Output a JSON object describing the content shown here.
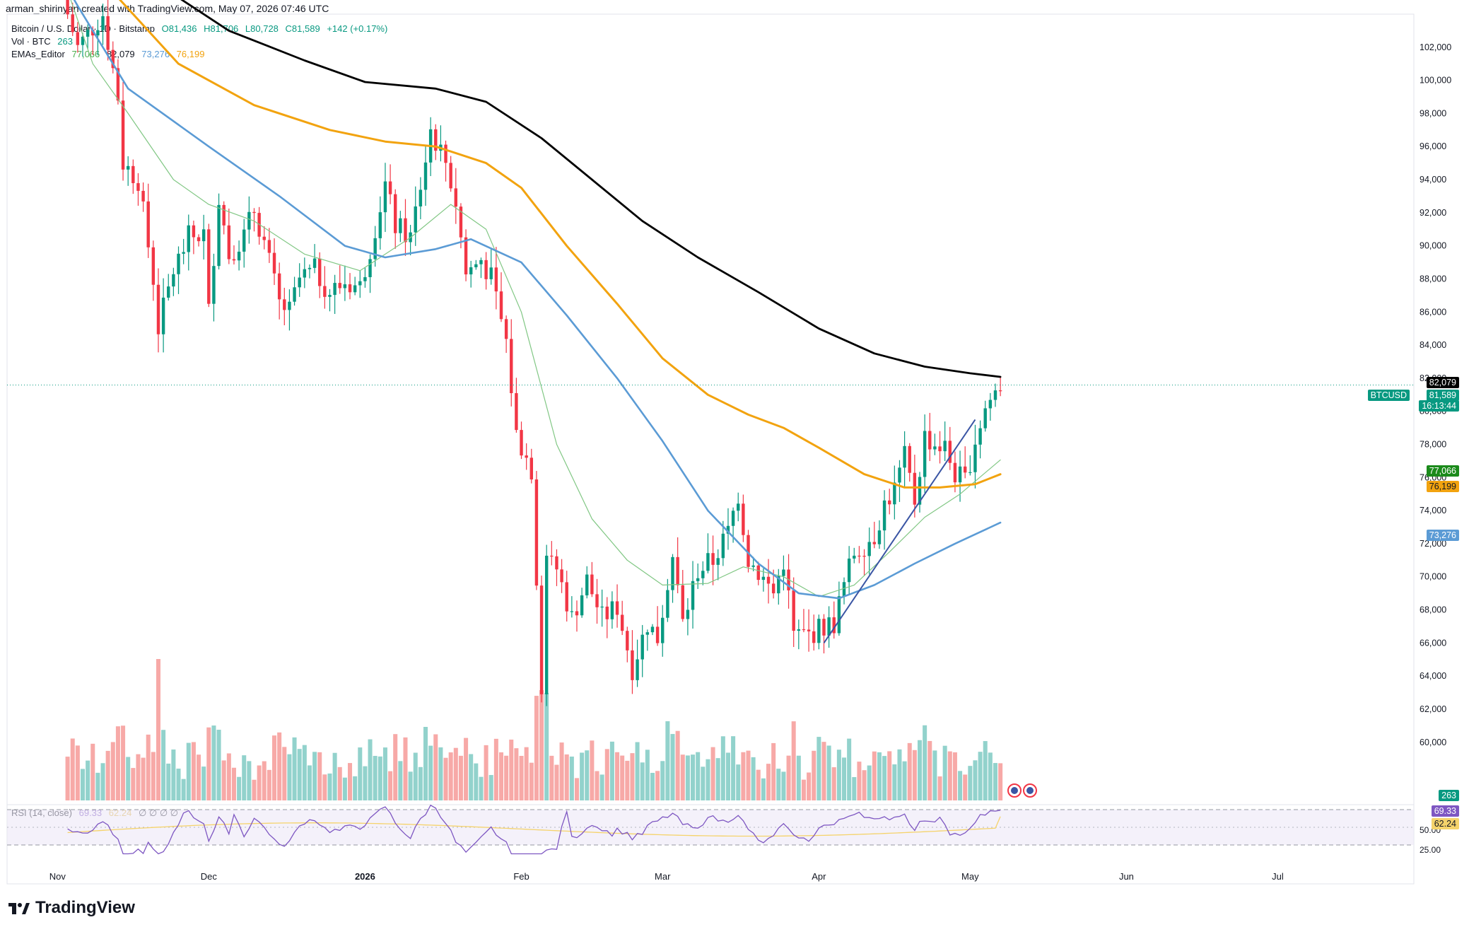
{
  "header": {
    "created_by": "arman_shirinyan created with TradingView.com, May 07, 2026 07:46 UTC"
  },
  "legend": {
    "symbol": "Bitcoin / U.S. Dollar · 1D · Bitstamp",
    "open": "O81,436",
    "high": "H81,706",
    "low": "L80,728",
    "close": "C81,589",
    "change": "+142 (+0.17%)",
    "vol_label": "Vol · BTC",
    "vol_value": "263",
    "ema_label": "EMAs_Editor",
    "ema_values": [
      "77,066",
      "82,079",
      "73,276",
      "76,199"
    ],
    "rsi_label": "RSI (14, close)",
    "rsi_value": "69.33",
    "rsi_ma": "62.24",
    "rsi_extra": "∅ ∅ ∅ ∅"
  },
  "price_labels": {
    "ema200": "82,079",
    "symbol_tag": "BTCUSD",
    "last": "81,589",
    "countdown": "16:13:44",
    "ema20": "77,066",
    "ema100": "76,199",
    "ema50": "73,276",
    "vol": "263",
    "rsi": "69.33",
    "rsi_ma": "62.24"
  },
  "brand": {
    "name": "TradingView"
  },
  "colors": {
    "up": "#089981",
    "down": "#f23645",
    "ema20": "#81c784",
    "ema50": "#5b9bd5",
    "ema100": "#f2a30f",
    "ema200": "#000000",
    "rsi": "#7e57c2",
    "rsi_ma": "#f5d36b",
    "trendline": "#3a55a4"
  },
  "chart_data": {
    "type": "candlestick",
    "symbol": "BTCUSD",
    "timeframe": "1D",
    "ylim": [
      57000,
      104000
    ],
    "yticks": [
      60000,
      62000,
      64000,
      66000,
      68000,
      70000,
      72000,
      74000,
      76000,
      78000,
      80000,
      82000,
      84000,
      86000,
      88000,
      90000,
      92000,
      94000,
      96000,
      98000,
      100000,
      102000
    ],
    "x_tick_labels": [
      "Nov",
      "Dec",
      "2026",
      "Feb",
      "Mar",
      "Apr",
      "May",
      "Jun",
      "Jul"
    ],
    "x_tick_dates": [
      "2025-11-01",
      "2025-12-01",
      "2026-01-01",
      "2026-02-01",
      "2026-03-01",
      "2026-04-01",
      "2026-05-01",
      "2026-06-01",
      "2026-07-01"
    ],
    "x_range": [
      "2025-10-22",
      "2026-07-28"
    ],
    "last_date": "2026-05-07",
    "last_price": 81589,
    "close_anchors": [
      [
        "2025-11-03",
        104000
      ],
      [
        "2025-11-05",
        102000
      ],
      [
        "2025-11-10",
        104000
      ],
      [
        "2025-11-13",
        99000
      ],
      [
        "2025-11-14",
        95000
      ],
      [
        "2025-11-17",
        94000
      ],
      [
        "2025-11-20",
        88000
      ],
      [
        "2025-11-21",
        85000
      ],
      [
        "2025-11-24",
        88500
      ],
      [
        "2025-11-27",
        90500
      ],
      [
        "2025-11-30",
        90700
      ],
      [
        "2025-12-01",
        86000
      ],
      [
        "2025-12-03",
        93000
      ],
      [
        "2025-12-05",
        89500
      ],
      [
        "2025-12-08",
        90600
      ],
      [
        "2025-12-10",
        92200
      ],
      [
        "2025-12-12",
        90200
      ],
      [
        "2025-12-15",
        86500
      ],
      [
        "2025-12-17",
        86000
      ],
      [
        "2025-12-19",
        88000
      ],
      [
        "2025-12-22",
        88500
      ],
      [
        "2025-12-25",
        87200
      ],
      [
        "2025-12-28",
        87800
      ],
      [
        "2025-12-31",
        87500
      ],
      [
        "2026-01-02",
        89900
      ],
      [
        "2026-01-05",
        93700
      ],
      [
        "2026-01-07",
        91200
      ],
      [
        "2026-01-10",
        90500
      ],
      [
        "2026-01-13",
        95200
      ],
      [
        "2026-01-14",
        97000
      ],
      [
        "2026-01-17",
        95100
      ],
      [
        "2026-01-19",
        92600
      ],
      [
        "2026-01-21",
        88300
      ],
      [
        "2026-01-24",
        89200
      ],
      [
        "2026-01-26",
        88000
      ],
      [
        "2026-01-29",
        84200
      ],
      [
        "2026-01-31",
        78600
      ],
      [
        "2026-02-03",
        76500
      ],
      [
        "2026-02-05",
        63500
      ],
      [
        "2026-02-06",
        70800
      ],
      [
        "2026-02-08",
        70500
      ],
      [
        "2026-02-11",
        67500
      ],
      [
        "2026-02-14",
        69800
      ],
      [
        "2026-02-17",
        67500
      ],
      [
        "2026-02-20",
        68200
      ],
      [
        "2026-02-23",
        64500
      ],
      [
        "2026-02-26",
        67200
      ],
      [
        "2026-02-28",
        66300
      ],
      [
        "2026-03-03",
        71200
      ],
      [
        "2026-03-05",
        67200
      ],
      [
        "2026-03-08",
        70400
      ],
      [
        "2026-03-11",
        71000
      ],
      [
        "2026-03-14",
        72700
      ],
      [
        "2026-03-16",
        75000
      ],
      [
        "2026-03-18",
        71100
      ],
      [
        "2026-03-20",
        70300
      ],
      [
        "2026-03-23",
        69000
      ],
      [
        "2026-03-25",
        71000
      ],
      [
        "2026-03-27",
        66500
      ],
      [
        "2026-03-30",
        66500
      ],
      [
        "2026-04-02",
        67000
      ],
      [
        "2026-04-04",
        67200
      ],
      [
        "2026-04-06",
        69500
      ],
      [
        "2026-04-08",
        71500
      ],
      [
        "2026-04-10",
        72000
      ],
      [
        "2026-04-12",
        72500
      ],
      [
        "2026-04-14",
        74400
      ],
      [
        "2026-04-16",
        75300
      ],
      [
        "2026-04-18",
        77200
      ],
      [
        "2026-04-20",
        74600
      ],
      [
        "2026-04-22",
        78500
      ],
      [
        "2026-04-24",
        78000
      ],
      [
        "2026-04-26",
        77800
      ],
      [
        "2026-04-28",
        76200
      ],
      [
        "2026-04-30",
        75800
      ],
      [
        "2026-05-02",
        78300
      ],
      [
        "2026-05-04",
        80200
      ],
      [
        "2026-05-06",
        81200
      ],
      [
        "2026-05-07",
        81589
      ]
    ],
    "ema_series": [
      {
        "period": 20,
        "color_key": "ema20",
        "width": 1.2,
        "points": [
          [
            "2025-10-22",
            116000
          ],
          [
            "2025-11-08",
            101000
          ],
          [
            "2025-11-15",
            98000
          ],
          [
            "2025-11-24",
            94000
          ],
          [
            "2025-12-01",
            92500
          ],
          [
            "2025-12-10",
            91500
          ],
          [
            "2025-12-20",
            89500
          ],
          [
            "2025-12-31",
            88500
          ],
          [
            "2026-01-10",
            90500
          ],
          [
            "2026-01-18",
            92500
          ],
          [
            "2026-01-25",
            91000
          ],
          [
            "2026-02-01",
            86000
          ],
          [
            "2026-02-08",
            78000
          ],
          [
            "2026-02-15",
            73500
          ],
          [
            "2026-02-22",
            71000
          ],
          [
            "2026-03-01",
            69500
          ],
          [
            "2026-03-10",
            69600
          ],
          [
            "2026-03-17",
            70600
          ],
          [
            "2026-03-25",
            70000
          ],
          [
            "2026-04-01",
            68800
          ],
          [
            "2026-04-08",
            69500
          ],
          [
            "2026-04-15",
            71500
          ],
          [
            "2026-04-22",
            73600
          ],
          [
            "2026-04-29",
            75000
          ],
          [
            "2026-05-07",
            77066
          ]
        ]
      },
      {
        "period": 50,
        "color_key": "ema50",
        "width": 2.6,
        "points": [
          [
            "2025-10-22",
            112000
          ],
          [
            "2025-11-05",
            104500
          ],
          [
            "2025-11-15",
            99500
          ],
          [
            "2025-12-01",
            96000
          ],
          [
            "2025-12-15",
            93000
          ],
          [
            "2025-12-28",
            90000
          ],
          [
            "2026-01-05",
            89300
          ],
          [
            "2026-01-15",
            89800
          ],
          [
            "2026-01-22",
            90400
          ],
          [
            "2026-02-01",
            89000
          ],
          [
            "2026-02-10",
            85800
          ],
          [
            "2026-02-20",
            82000
          ],
          [
            "2026-03-01",
            78200
          ],
          [
            "2026-03-10",
            74000
          ],
          [
            "2026-03-20",
            70800
          ],
          [
            "2026-03-28",
            69000
          ],
          [
            "2026-04-05",
            68700
          ],
          [
            "2026-04-12",
            69500
          ],
          [
            "2026-04-20",
            70800
          ],
          [
            "2026-04-28",
            72000
          ],
          [
            "2026-05-07",
            73276
          ]
        ]
      },
      {
        "period": 100,
        "color_key": "ema100",
        "width": 3.0,
        "points": [
          [
            "2025-10-22",
            112000
          ],
          [
            "2025-11-10",
            106000
          ],
          [
            "2025-11-25",
            101000
          ],
          [
            "2025-12-10",
            98500
          ],
          [
            "2025-12-25",
            97000
          ],
          [
            "2026-01-05",
            96300
          ],
          [
            "2026-01-15",
            96000
          ],
          [
            "2026-01-25",
            95000
          ],
          [
            "2026-02-01",
            93500
          ],
          [
            "2026-02-10",
            90000
          ],
          [
            "2026-02-20",
            86500
          ],
          [
            "2026-03-01",
            83200
          ],
          [
            "2026-03-10",
            81000
          ],
          [
            "2026-03-18",
            79800
          ],
          [
            "2026-03-25",
            79000
          ],
          [
            "2026-04-01",
            77800
          ],
          [
            "2026-04-10",
            76200
          ],
          [
            "2026-04-18",
            75400
          ],
          [
            "2026-04-25",
            75400
          ],
          [
            "2026-05-02",
            75600
          ],
          [
            "2026-05-07",
            76199
          ]
        ]
      },
      {
        "period": 200,
        "color_key": "ema200",
        "width": 2.8,
        "points": [
          [
            "2025-10-22",
            112000
          ],
          [
            "2025-11-15",
            107000
          ],
          [
            "2025-12-05",
            103000
          ],
          [
            "2025-12-20",
            101200
          ],
          [
            "2026-01-01",
            99900
          ],
          [
            "2026-01-15",
            99500
          ],
          [
            "2026-01-25",
            98700
          ],
          [
            "2026-02-05",
            96500
          ],
          [
            "2026-02-15",
            94000
          ],
          [
            "2026-02-25",
            91500
          ],
          [
            "2026-03-08",
            89300
          ],
          [
            "2026-03-20",
            87200
          ],
          [
            "2026-04-01",
            85000
          ],
          [
            "2026-04-12",
            83500
          ],
          [
            "2026-04-22",
            82700
          ],
          [
            "2026-05-01",
            82300
          ],
          [
            "2026-05-07",
            82079
          ]
        ]
      }
    ],
    "trendline": [
      [
        "2026-04-02",
        66000
      ],
      [
        "2026-05-02",
        79500
      ]
    ],
    "volume": {
      "label": "Vol · BTC",
      "last": 263,
      "peaks": [
        [
          "2025-11-21",
          1000
        ],
        [
          "2026-02-05",
          780
        ],
        [
          "2026-02-06",
          760
        ],
        [
          "2026-01-13",
          520
        ],
        [
          "2026-03-02",
          560
        ]
      ]
    },
    "rsi": {
      "label": "RSI (14, close)",
      "levels": [
        70,
        50,
        30
      ],
      "ylim": [
        20,
        75
      ],
      "ytick_labels": [
        "25.00",
        "50.00"
      ],
      "last": 69.33,
      "ma_last": 62.24
    }
  }
}
